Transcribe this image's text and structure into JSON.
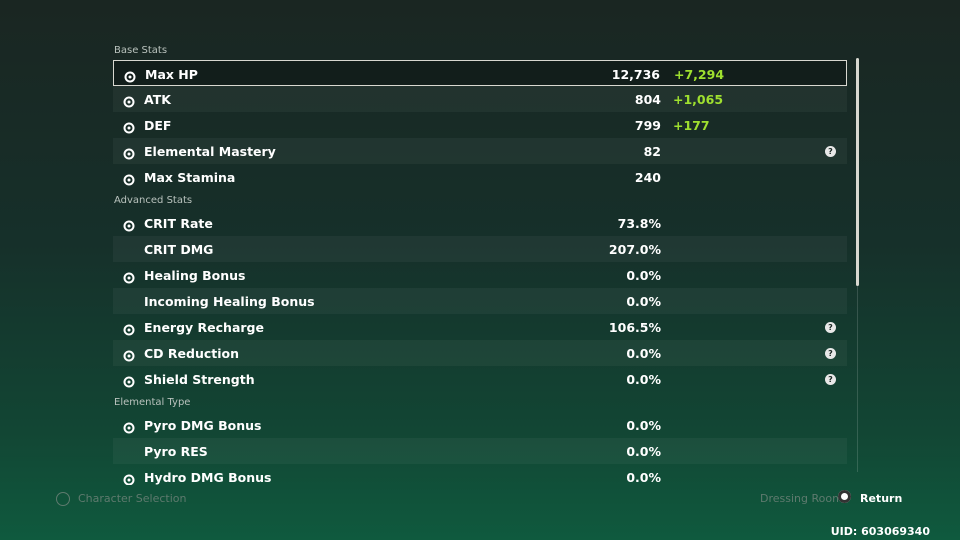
{
  "sections": [
    {
      "title": "Base Stats",
      "rows": [
        {
          "name": "Max HP",
          "value": "12,736",
          "bonus": "+7,294"
        },
        {
          "name": "ATK",
          "value": "804",
          "bonus": "+1,065"
        },
        {
          "name": "DEF",
          "value": "799",
          "bonus": "+177"
        },
        {
          "name": "Elemental Mastery",
          "value": "82",
          "help": true
        },
        {
          "name": "Max Stamina",
          "value": "240"
        }
      ]
    },
    {
      "title": "Advanced Stats",
      "rows": [
        {
          "name": "CRIT Rate",
          "value": "73.8%"
        },
        {
          "name": "CRIT DMG",
          "value": "207.0%"
        },
        {
          "name": "Healing Bonus",
          "value": "0.0%"
        },
        {
          "name": "Incoming Healing Bonus",
          "value": "0.0%"
        },
        {
          "name": "Energy Recharge",
          "value": "106.5%",
          "help": true
        },
        {
          "name": "CD Reduction",
          "value": "0.0%",
          "help": true
        },
        {
          "name": "Shield Strength",
          "value": "0.0%",
          "help": true
        }
      ]
    },
    {
      "title": "Elemental Type",
      "rows": [
        {
          "name": "Pyro DMG Bonus",
          "value": "0.0%"
        },
        {
          "name": "Pyro RES",
          "value": "0.0%"
        },
        {
          "name": "Hydro DMG Bonus",
          "value": "0.0%"
        }
      ]
    }
  ],
  "footer": {
    "left": "Character Selection",
    "dressing": "Dressing Room",
    "return": "Return",
    "uid": "UID: 603069340"
  }
}
